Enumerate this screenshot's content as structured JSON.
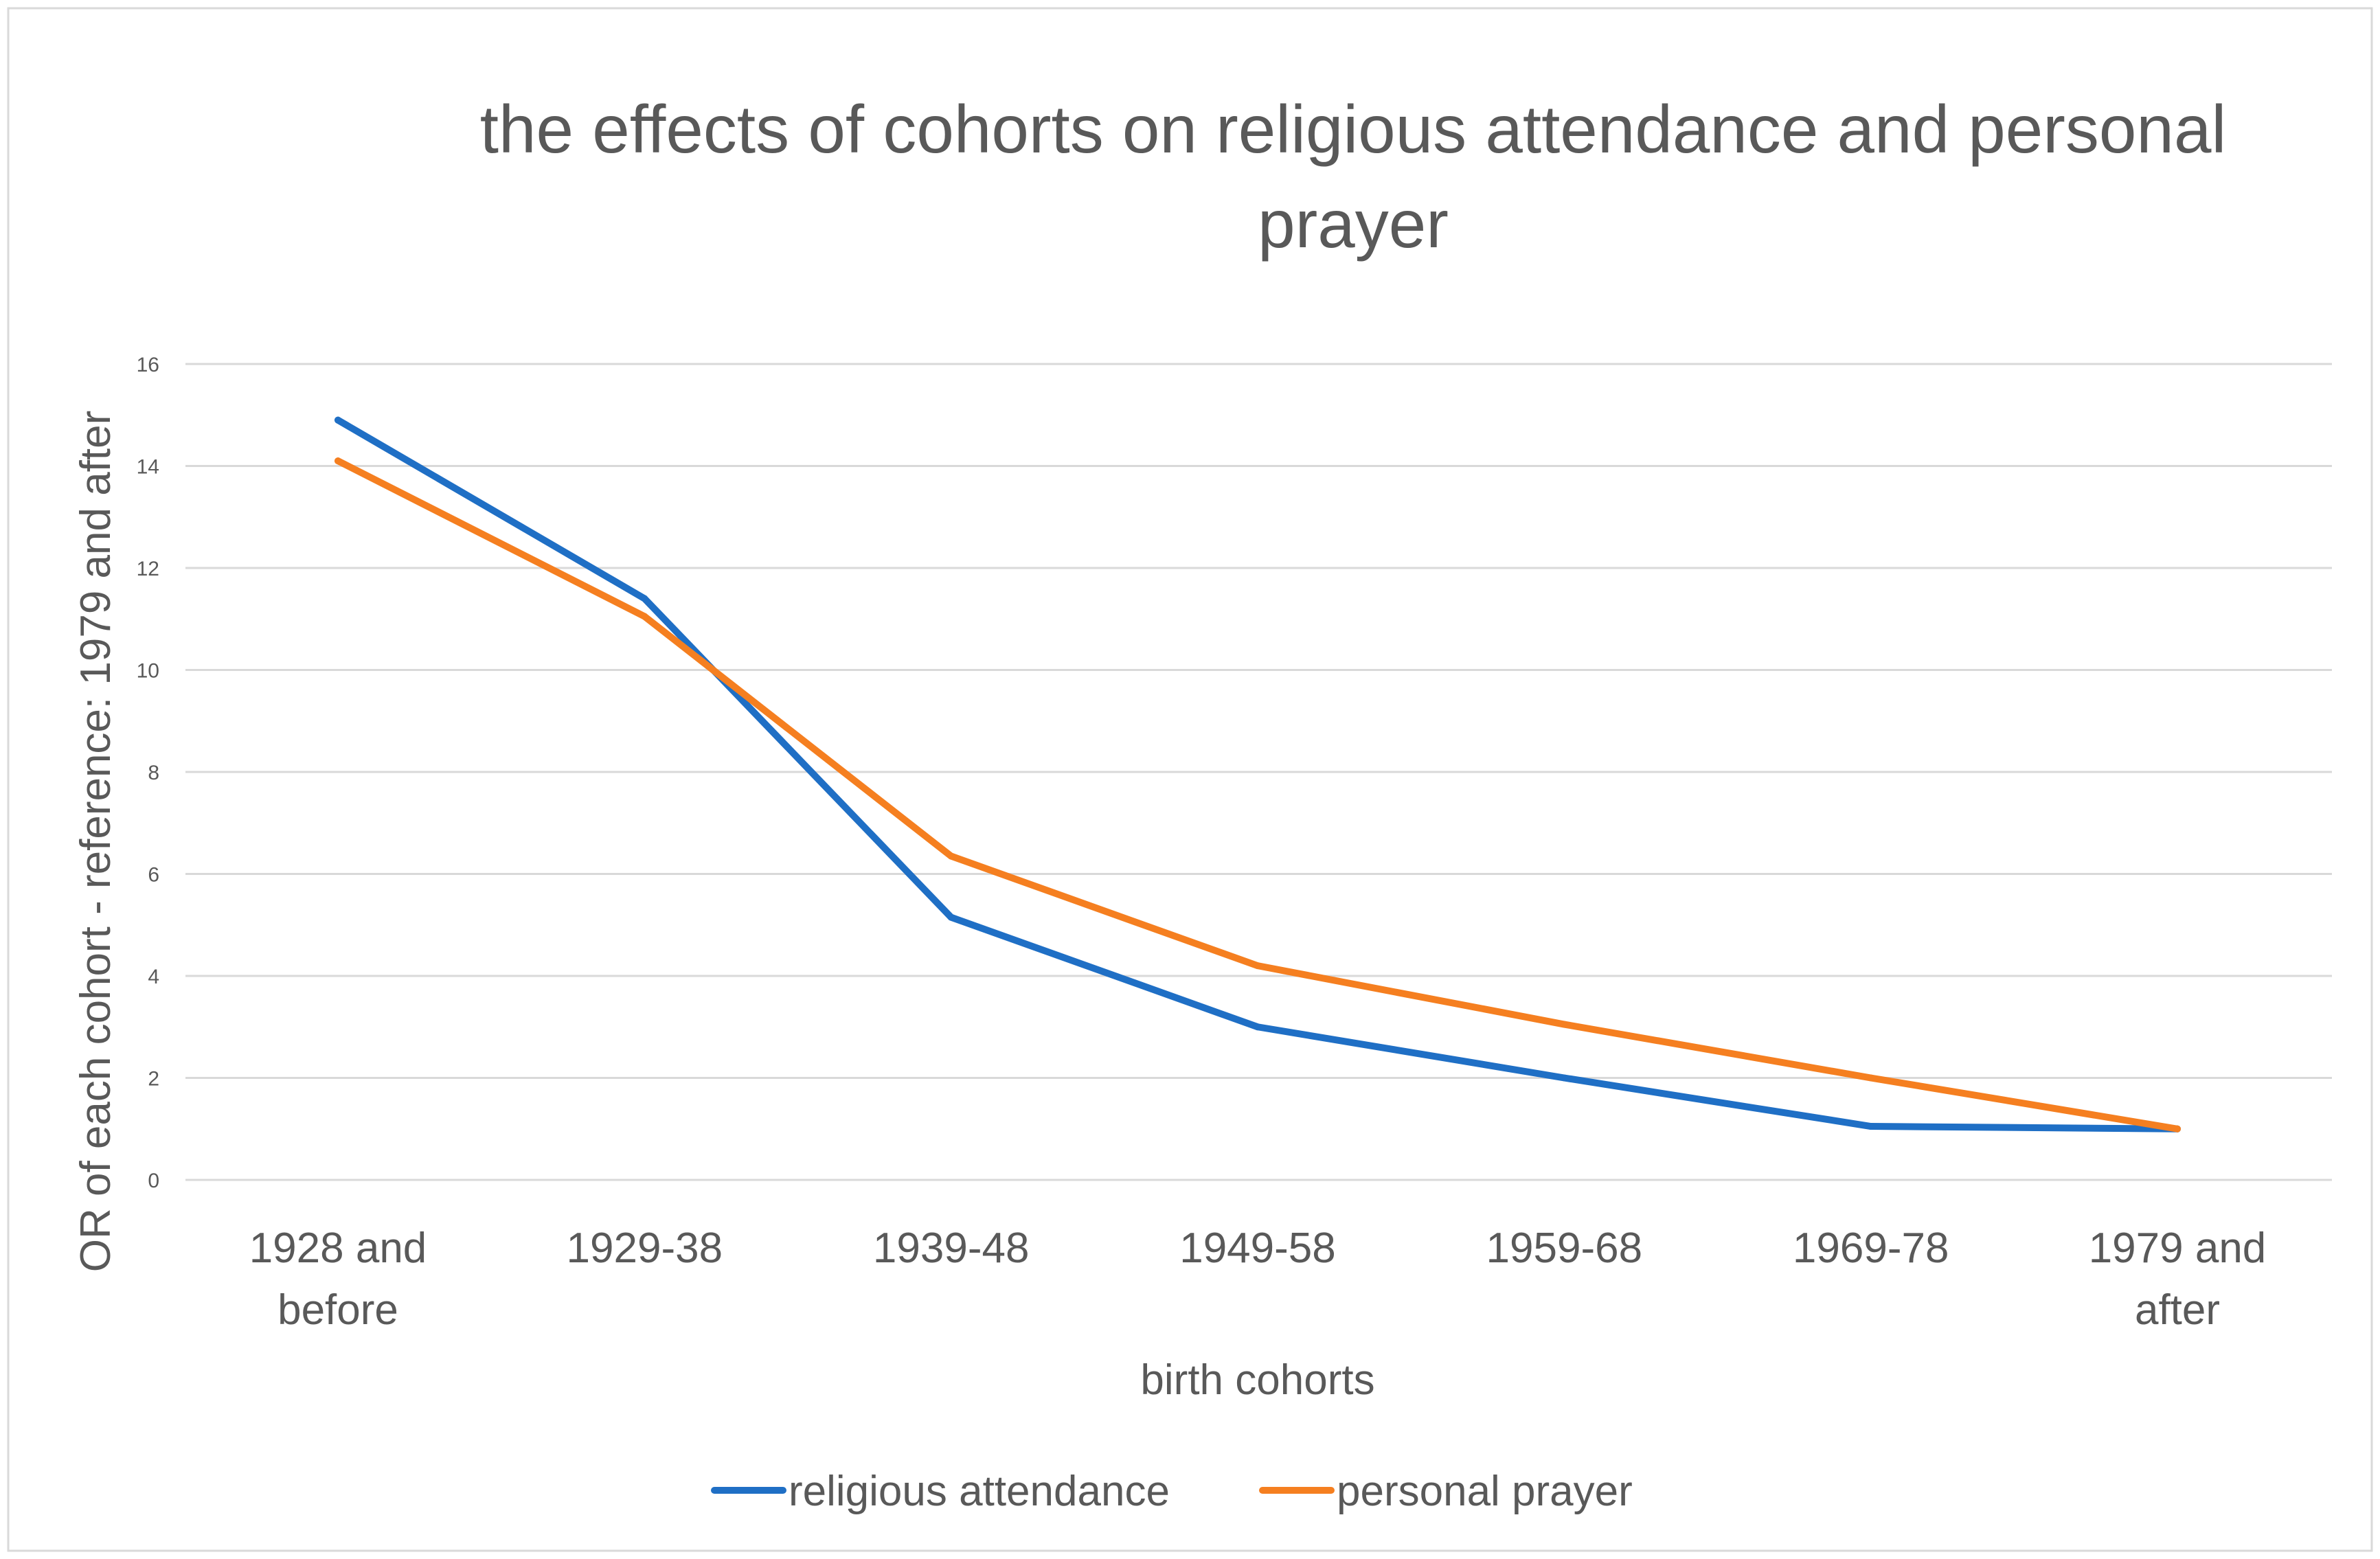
{
  "chart_data": {
    "type": "line",
    "title_lines": [
      "the effects of cohorts on religious attendance and personal",
      "prayer"
    ],
    "xlabel": "birth cohorts",
    "ylabel": "OR of each cohort - reference: 1979 and after",
    "categories": [
      [
        "1928 and",
        "before"
      ],
      [
        "1929-38"
      ],
      [
        "1939-48"
      ],
      [
        "1949-58"
      ],
      [
        "1959-68"
      ],
      [
        "1969-78"
      ],
      [
        "1979 and",
        "after"
      ]
    ],
    "yticks": [
      0,
      2,
      4,
      6,
      8,
      10,
      12,
      14,
      16
    ],
    "ylim": [
      0,
      16
    ],
    "grid": true,
    "legend_position": "bottom",
    "series": [
      {
        "name": "religious attendance",
        "color": "#1F6FC5",
        "values": [
          14.9,
          11.4,
          5.15,
          3.0,
          2.0,
          1.05,
          1.0
        ]
      },
      {
        "name": "personal prayer",
        "color": "#F57F20",
        "values": [
          14.1,
          11.05,
          6.35,
          4.2,
          3.05,
          2.0,
          1.0
        ]
      }
    ]
  }
}
